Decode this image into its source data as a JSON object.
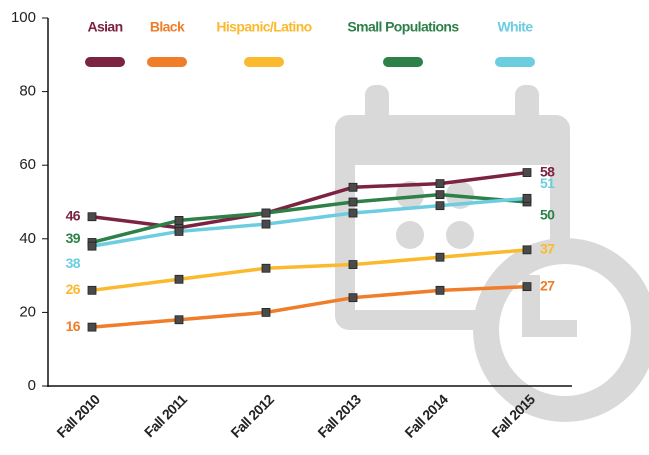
{
  "chart_data": {
    "type": "line",
    "categories": [
      "Fall 2010",
      "Fall 2011",
      "Fall 2012",
      "Fall 2013",
      "Fall 2014",
      "Fall 2015"
    ],
    "series": [
      {
        "name": "Asian",
        "color": "#7b2340",
        "values": [
          46,
          43,
          47,
          54,
          55,
          58
        ]
      },
      {
        "name": "Black",
        "color": "#ef7d2a",
        "values": [
          16,
          18,
          20,
          24,
          26,
          27
        ]
      },
      {
        "name": "Hispanic/Latino",
        "color": "#fbb92d",
        "values": [
          26,
          29,
          32,
          33,
          35,
          37
        ]
      },
      {
        "name": "Small Populations",
        "color": "#2e8049",
        "values": [
          39,
          45,
          47,
          50,
          52,
          50
        ]
      },
      {
        "name": "White",
        "color": "#6dcde0",
        "values": [
          38,
          42,
          44,
          47,
          49,
          51
        ]
      }
    ],
    "ylim": [
      0,
      100
    ],
    "yticks": [
      0,
      20,
      40,
      60,
      80,
      100
    ],
    "legend": "top"
  }
}
